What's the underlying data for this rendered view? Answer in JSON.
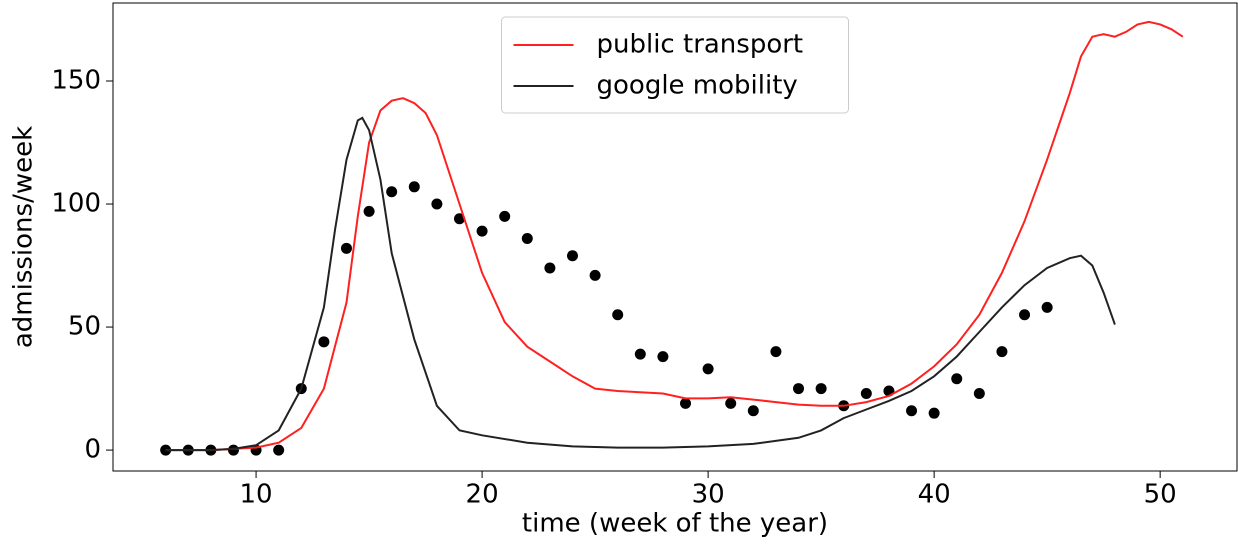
{
  "chart_data": {
    "type": "line",
    "xlabel": "time (week of the year)",
    "ylabel": "admissions/week",
    "xlim": [
      3.67,
      53.4
    ],
    "ylim": [
      -8.5,
      181.7
    ],
    "xticks": [
      10,
      20,
      30,
      40,
      50
    ],
    "yticks": [
      0,
      50,
      100,
      150
    ],
    "legend": "upper center",
    "series": [
      {
        "type": "scatter",
        "color": "#000000",
        "x": [
          6,
          7,
          8,
          9,
          10,
          11,
          12,
          13,
          14,
          15,
          16,
          17,
          18,
          19,
          20,
          21,
          22,
          23,
          24,
          25,
          26,
          27,
          28,
          29,
          30,
          31,
          32,
          33,
          34,
          35,
          36,
          37,
          38,
          39,
          40,
          41,
          42,
          43,
          44,
          45
        ],
        "values": [
          0,
          0,
          0,
          0,
          0,
          0,
          25,
          44,
          82,
          97,
          105,
          107,
          100,
          94,
          89,
          95,
          86,
          74,
          79,
          71,
          55,
          39,
          38,
          19,
          33,
          19,
          16,
          40,
          25,
          25,
          18,
          23,
          24,
          16,
          15,
          29,
          23,
          40,
          55,
          58
        ]
      },
      {
        "type": "line",
        "name": "public transport",
        "color": "#ff2020",
        "x": [
          6,
          8,
          10,
          11,
          12,
          13,
          14,
          14.5,
          15,
          15.5,
          16,
          16.5,
          17,
          17.5,
          18,
          19,
          20,
          21,
          22,
          23,
          24,
          25,
          26,
          27,
          28,
          29,
          30,
          31,
          32,
          33,
          34,
          35,
          36,
          37,
          38,
          39,
          40,
          41,
          42,
          43,
          44,
          45,
          46,
          46.5,
          47,
          47.5,
          48,
          48.5,
          49,
          49.5,
          50,
          50.5,
          51
        ],
        "values": [
          0,
          0,
          1,
          3,
          9,
          25,
          60,
          95,
          125,
          138,
          142,
          143,
          141,
          137,
          128,
          100,
          72,
          52,
          42,
          36,
          30,
          25,
          24,
          23.5,
          23,
          21,
          21,
          21.5,
          20.5,
          19.5,
          18.5,
          18,
          18,
          19.5,
          22,
          27,
          34,
          43,
          55,
          72,
          93,
          118,
          145,
          160,
          168,
          169,
          168,
          170,
          173,
          174,
          173,
          171,
          168
        ]
      },
      {
        "type": "line",
        "name": "google mobility",
        "color": "#222222",
        "x": [
          6,
          8,
          9,
          10,
          11,
          12,
          13,
          13.5,
          14,
          14.5,
          14.7,
          15,
          15.5,
          16,
          17,
          18,
          19,
          20,
          22,
          24,
          26,
          28,
          30,
          32,
          34,
          35,
          36,
          37,
          38,
          39,
          40,
          41,
          42,
          43,
          44,
          45,
          46,
          46.5,
          47,
          47.5,
          48
        ],
        "values": [
          0,
          0,
          0.5,
          2,
          8,
          25,
          58,
          90,
          118,
          134,
          135,
          130,
          110,
          80,
          45,
          18,
          8,
          6,
          3,
          1.5,
          1,
          1,
          1.5,
          2.5,
          5,
          8,
          13,
          16.5,
          20,
          24,
          30,
          38,
          48,
          58,
          67,
          74,
          78,
          79,
          75,
          64,
          51
        ]
      }
    ]
  }
}
